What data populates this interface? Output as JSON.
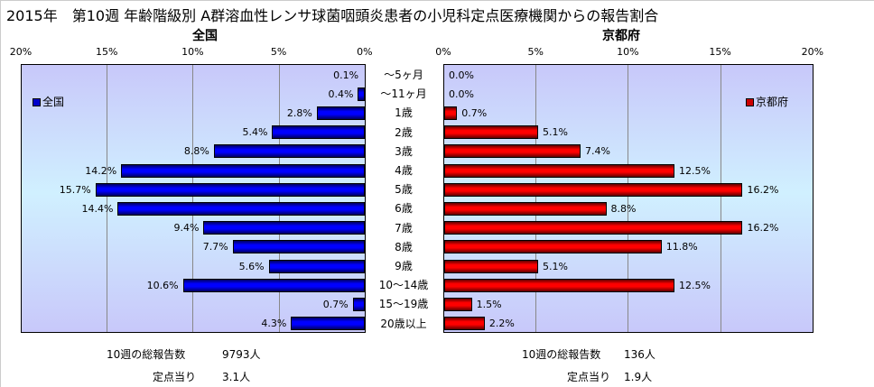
{
  "title": "2015年　第10週 年齢階級別 A群溶血性レンサ球菌咽頭炎患者の小児科定点医療機関からの報告割合",
  "chart_data": {
    "type": "bar",
    "categories": [
      "～5ヶ月",
      "～11ヶ月",
      "1歳",
      "2歳",
      "3歳",
      "4歳",
      "5歳",
      "6歳",
      "7歳",
      "8歳",
      "9歳",
      "10～14歳",
      "15～19歳",
      "20歳以上"
    ],
    "xlim": [
      0,
      20
    ],
    "ticks": [
      "20%",
      "15%",
      "10%",
      "5%",
      "0%"
    ],
    "ticks_right": [
      "0%",
      "5%",
      "10%",
      "15%",
      "20%"
    ],
    "series": [
      {
        "name": "全国",
        "title": "全国",
        "color": "#0000ff",
        "values": [
          0.1,
          0.4,
          2.8,
          5.4,
          8.8,
          14.2,
          15.7,
          14.4,
          9.4,
          7.7,
          5.6,
          10.6,
          0.7,
          4.3
        ],
        "labels": [
          "0.1%",
          "0.4%",
          "2.8%",
          "5.4%",
          "8.8%",
          "14.2%",
          "15.7%",
          "14.4%",
          "9.4%",
          "7.7%",
          "5.6%",
          "10.6%",
          "0.7%",
          "4.3%"
        ]
      },
      {
        "name": "京都府",
        "title": "京都府",
        "color": "#ff0000",
        "values": [
          0.0,
          0.0,
          0.7,
          5.1,
          7.4,
          12.5,
          16.2,
          8.8,
          16.2,
          11.8,
          5.1,
          12.5,
          1.5,
          2.2
        ],
        "labels": [
          "0.0%",
          "0.0%",
          "0.7%",
          "5.1%",
          "7.4%",
          "12.5%",
          "16.2%",
          "8.8%",
          "16.2%",
          "11.8%",
          "5.1%",
          "12.5%",
          "1.5%",
          "2.2%"
        ]
      }
    ]
  },
  "footer": {
    "national": {
      "total_label": "10週の総報告数",
      "total_value": "9793人",
      "per_label": "定点当り",
      "per_value": "3.1人"
    },
    "kyoto": {
      "total_label": "10週の総報告数",
      "total_value": "136人",
      "per_label": "定点当り",
      "per_value": "1.9人"
    }
  }
}
